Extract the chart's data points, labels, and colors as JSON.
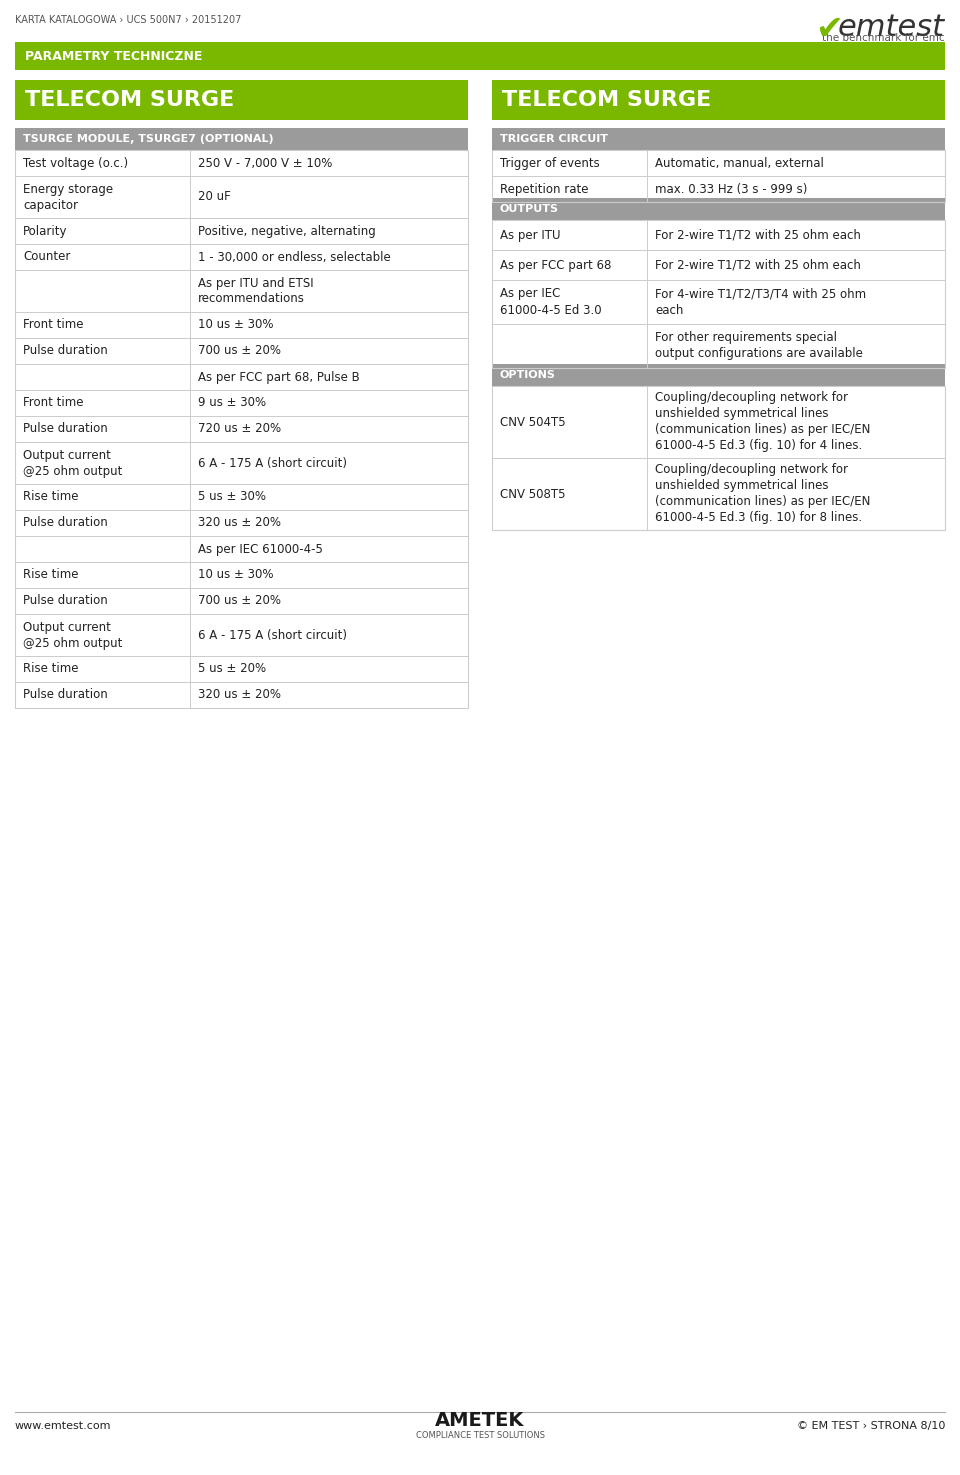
{
  "page_width": 9.6,
  "page_height": 14.75,
  "bg_color": "#ffffff",
  "green_color": "#7ab800",
  "header_gray": "#9b9b9b",
  "row_line_color": "#cccccc",
  "text_color": "#333333",
  "top_breadcrumb": "KARTA KATALOGOWA › UCS 500N7 › 20151207",
  "param_banner": "PARAMETRY TECHNICZNE",
  "left_title": "TELECOM SURGE",
  "right_title": "TELECOM SURGE",
  "left_section_header": "TSURGE MODULE, TSURGE7 (OPTIONAL)",
  "right_section1_header": "TRIGGER CIRCUIT",
  "right_section2_header": "OUTPUTS",
  "right_section3_header": "OPTIONS",
  "left_rows": [
    [
      "Test voltage (o.c.)",
      "250 V - 7,000 V ± 10%"
    ],
    [
      "Energy storage\ncapacitor",
      "20 uF"
    ],
    [
      "Polarity",
      "Positive, negative, alternating"
    ],
    [
      "Counter",
      "1 - 30,000 or endless, selectable"
    ],
    [
      "",
      "As per ITU and ETSI\nrecommendations"
    ],
    [
      "Front time",
      "10 us ± 30%"
    ],
    [
      "Pulse duration",
      "700 us ± 20%"
    ],
    [
      "",
      "As per FCC part 68, Pulse B"
    ],
    [
      "Front time",
      "9 us ± 30%"
    ],
    [
      "Pulse duration",
      "720 us ± 20%"
    ],
    [
      "Output current\n@25 ohm output",
      "6 A - 175 A (short circuit)"
    ],
    [
      "Rise time",
      "5 us ± 30%"
    ],
    [
      "Pulse duration",
      "320 us ± 20%"
    ],
    [
      "",
      "As per IEC 61000-4-5"
    ],
    [
      "Rise time",
      "10 us ± 30%"
    ],
    [
      "Pulse duration",
      "700 us ± 20%"
    ],
    [
      "Output current\n@25 ohm output",
      "6 A - 175 A (short circuit)"
    ],
    [
      "Rise time",
      "5 us ± 20%"
    ],
    [
      "Pulse duration",
      "320 us ± 20%"
    ]
  ],
  "trigger_rows": [
    [
      "Trigger of events",
      "Automatic, manual, external"
    ],
    [
      "Repetition rate",
      "max. 0.33 Hz (3 s - 999 s)"
    ]
  ],
  "outputs_rows": [
    [
      "As per ITU",
      "For 2-wire T1/T2 with 25 ohm each"
    ],
    [
      "As per FCC part 68",
      "For 2-wire T1/T2 with 25 ohm each"
    ],
    [
      "As per IEC\n61000-4-5 Ed 3.0",
      "For 4-wire T1/T2/T3/T4 with 25 ohm\neach"
    ],
    [
      "",
      "For other requirements special\noutput configurations are available"
    ]
  ],
  "options_rows": [
    [
      "CNV 504T5",
      "Coupling/decoupling network for\nunshielded symmetrical lines\n(communication lines) as per IEC/EN\n61000-4-5 Ed.3 (fig. 10) for 4 lines."
    ],
    [
      "CNV 508T5",
      "Coupling/decoupling network for\nunshielded symmetrical lines\n(communication lines) as per IEC/EN\n61000-4-5 Ed.3 (fig. 10) for 8 lines."
    ]
  ],
  "footer_left": "www.emtest.com",
  "footer_right": "© EM TEST › STRONA 8/10",
  "footer_logo": "AMETEK®\nCOMPLIANCE TEST SOLUTIONS"
}
